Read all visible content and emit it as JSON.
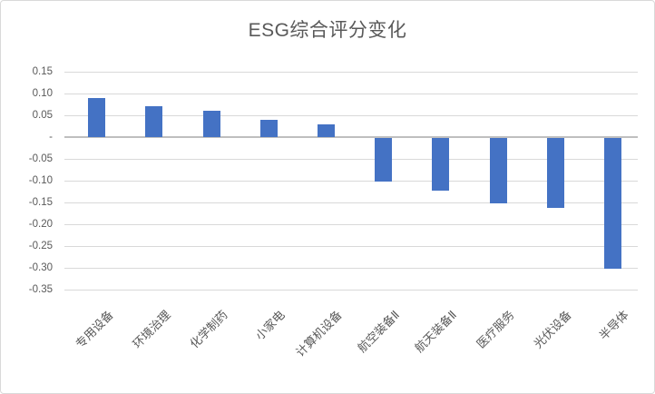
{
  "chart_data": {
    "type": "bar",
    "title": "ESG综合评分变化",
    "categories": [
      "专用设备",
      "环境治理",
      "化学制药",
      "小家电",
      "计算机设备",
      "航空装备Ⅱ",
      "航天装备Ⅱ",
      "医疗服务",
      "光伏设备",
      "半导体"
    ],
    "values": [
      0.09,
      0.07,
      0.06,
      0.04,
      0.03,
      -0.1,
      -0.12,
      -0.15,
      -0.16,
      -0.3
    ],
    "xlabel": "",
    "ylabel": "",
    "ylim": [
      -0.35,
      0.15
    ],
    "yticks": {
      "values": [
        0.15,
        0.1,
        0.05,
        0,
        -0.05,
        -0.1,
        -0.15,
        -0.2,
        -0.25,
        -0.3,
        -0.35
      ],
      "labels": [
        "0.15",
        "0.10",
        "0.05",
        "-",
        "-0.05",
        "-0.10",
        "-0.15",
        "-0.20",
        "-0.25",
        "-0.30",
        "-0.35"
      ]
    },
    "grid": "horizontal",
    "legend": "none",
    "colors": {
      "bar": "#4472c4",
      "gridline": "#d9d9d9",
      "zero_axis": "#bfbfbf",
      "text": "#595959",
      "frame_border": "#d9d9d9",
      "background": "#ffffff"
    }
  }
}
